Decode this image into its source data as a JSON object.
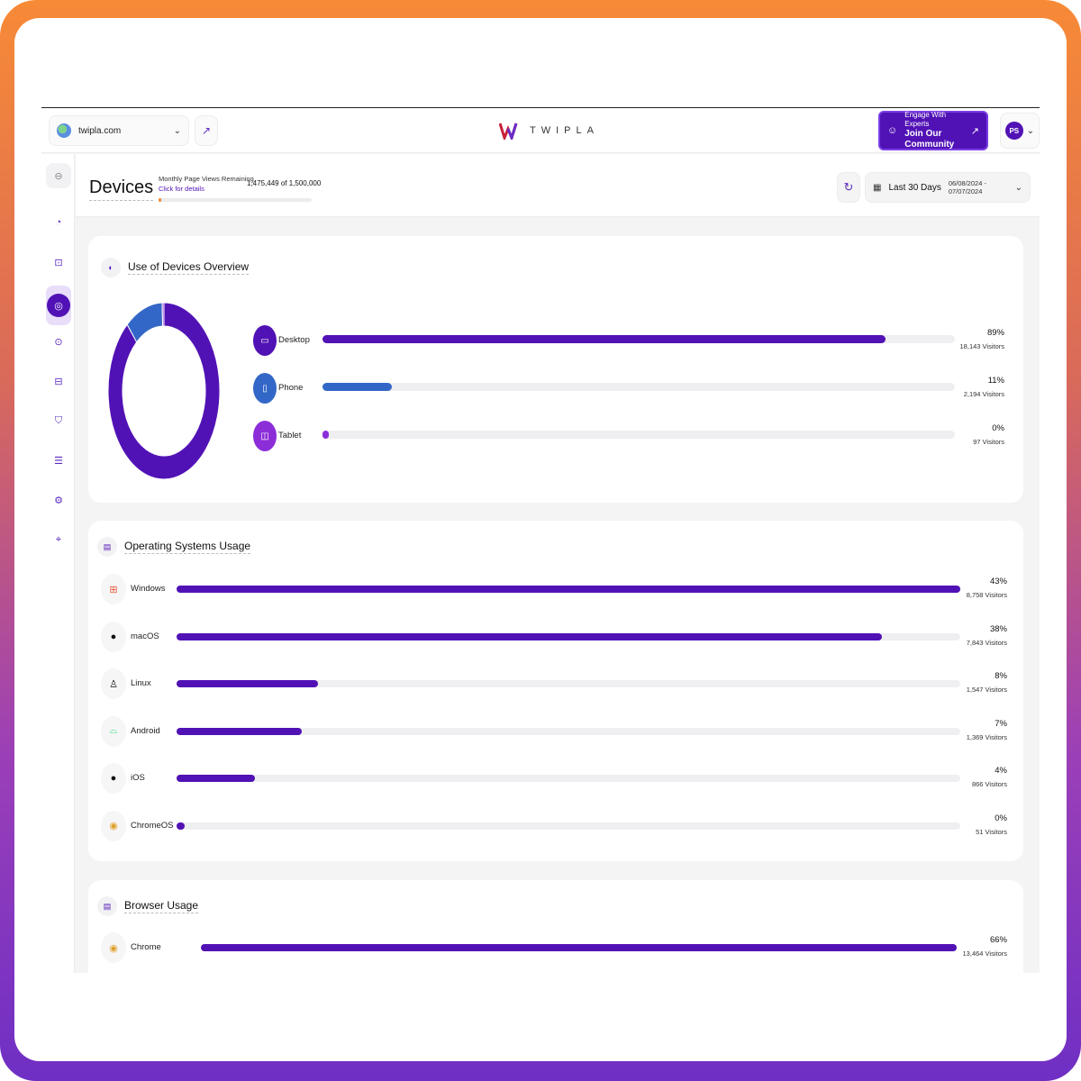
{
  "header": {
    "site": "twipla.com",
    "logo_text": "TWIPLA",
    "engage_top": "Engage With Experts",
    "engage_bottom": "Join Our Community",
    "avatar_initials": "PS"
  },
  "page": {
    "title": "Devices",
    "page_views_label": "Monthly Page Views Remaining",
    "page_views_link": "Click for details",
    "page_views_value": "1,475,449 of 1,500,000",
    "page_views_used_fraction": 0.016,
    "date_label": "Last 30 Days",
    "date_range": "06/08/2024 - 07/07/2024"
  },
  "sidebar": {
    "items": [
      {
        "name": "nav-home-icon",
        "glyph": "⊖"
      },
      {
        "name": "nav-analytics-icon",
        "glyph": "◔"
      },
      {
        "name": "nav-ecommerce-icon",
        "glyph": "⊡"
      },
      {
        "name": "nav-behavior-icon",
        "glyph": "◎",
        "active": true
      },
      {
        "name": "nav-recordings-icon",
        "glyph": "⊙"
      },
      {
        "name": "nav-surveys-icon",
        "glyph": "⊟"
      },
      {
        "name": "nav-privacy-icon",
        "glyph": "⛉"
      },
      {
        "name": "nav-apps-icon",
        "glyph": "☰"
      },
      {
        "name": "nav-settings-icon",
        "glyph": "⚙"
      },
      {
        "name": "nav-location-icon",
        "glyph": "⌖"
      }
    ]
  },
  "devices_card": {
    "title": "Use of Devices Overview",
    "rows": [
      {
        "label": "Desktop",
        "percent": "89%",
        "visitors": "18,143 Visitors",
        "value": 0.89,
        "color": "#5112b5",
        "glyph": "▭"
      },
      {
        "label": "Phone",
        "percent": "11%",
        "visitors": "2,194 Visitors",
        "value": 0.11,
        "color": "#3367c7",
        "glyph": "▯"
      },
      {
        "label": "Tablet",
        "percent": "0%",
        "visitors": "97 Visitors",
        "value": 0.005,
        "color": "#8c2ed8",
        "glyph": "◫"
      }
    ]
  },
  "os_card": {
    "title": "Operating Systems Usage",
    "rows": [
      {
        "label": "Windows",
        "percent": "43%",
        "visitors": "8,758 Visitors",
        "value": 1.0,
        "icon": "windows-icon",
        "glyph": "⊞",
        "color": "#e9563a"
      },
      {
        "label": "macOS",
        "percent": "38%",
        "visitors": "7,843 Visitors",
        "value": 0.9,
        "icon": "apple-icon",
        "glyph": "●",
        "color": "#111111"
      },
      {
        "label": "Linux",
        "percent": "8%",
        "visitors": "1,547 Visitors",
        "value": 0.18,
        "icon": "linux-icon",
        "glyph": "♙",
        "color": "#111111"
      },
      {
        "label": "Android",
        "percent": "7%",
        "visitors": "1,369 Visitors",
        "value": 0.16,
        "icon": "android-icon",
        "glyph": "⌓",
        "color": "#3ddc84"
      },
      {
        "label": "iOS",
        "percent": "4%",
        "visitors": "866 Visitors",
        "value": 0.1,
        "icon": "apple-icon",
        "glyph": "●",
        "color": "#111111"
      },
      {
        "label": "ChromeOS",
        "percent": "0%",
        "visitors": "51 Visitors",
        "value": 0.008,
        "icon": "chrome-icon",
        "glyph": "◉",
        "color": "#e0a330"
      }
    ]
  },
  "browser_card": {
    "title": "Browser Usage",
    "rows": [
      {
        "label": "Chrome",
        "percent": "66%",
        "visitors": "13,464 Visitors",
        "value": 1.0,
        "icon": "chrome-icon",
        "glyph": "◉",
        "color": "#e0a330"
      }
    ]
  }
}
